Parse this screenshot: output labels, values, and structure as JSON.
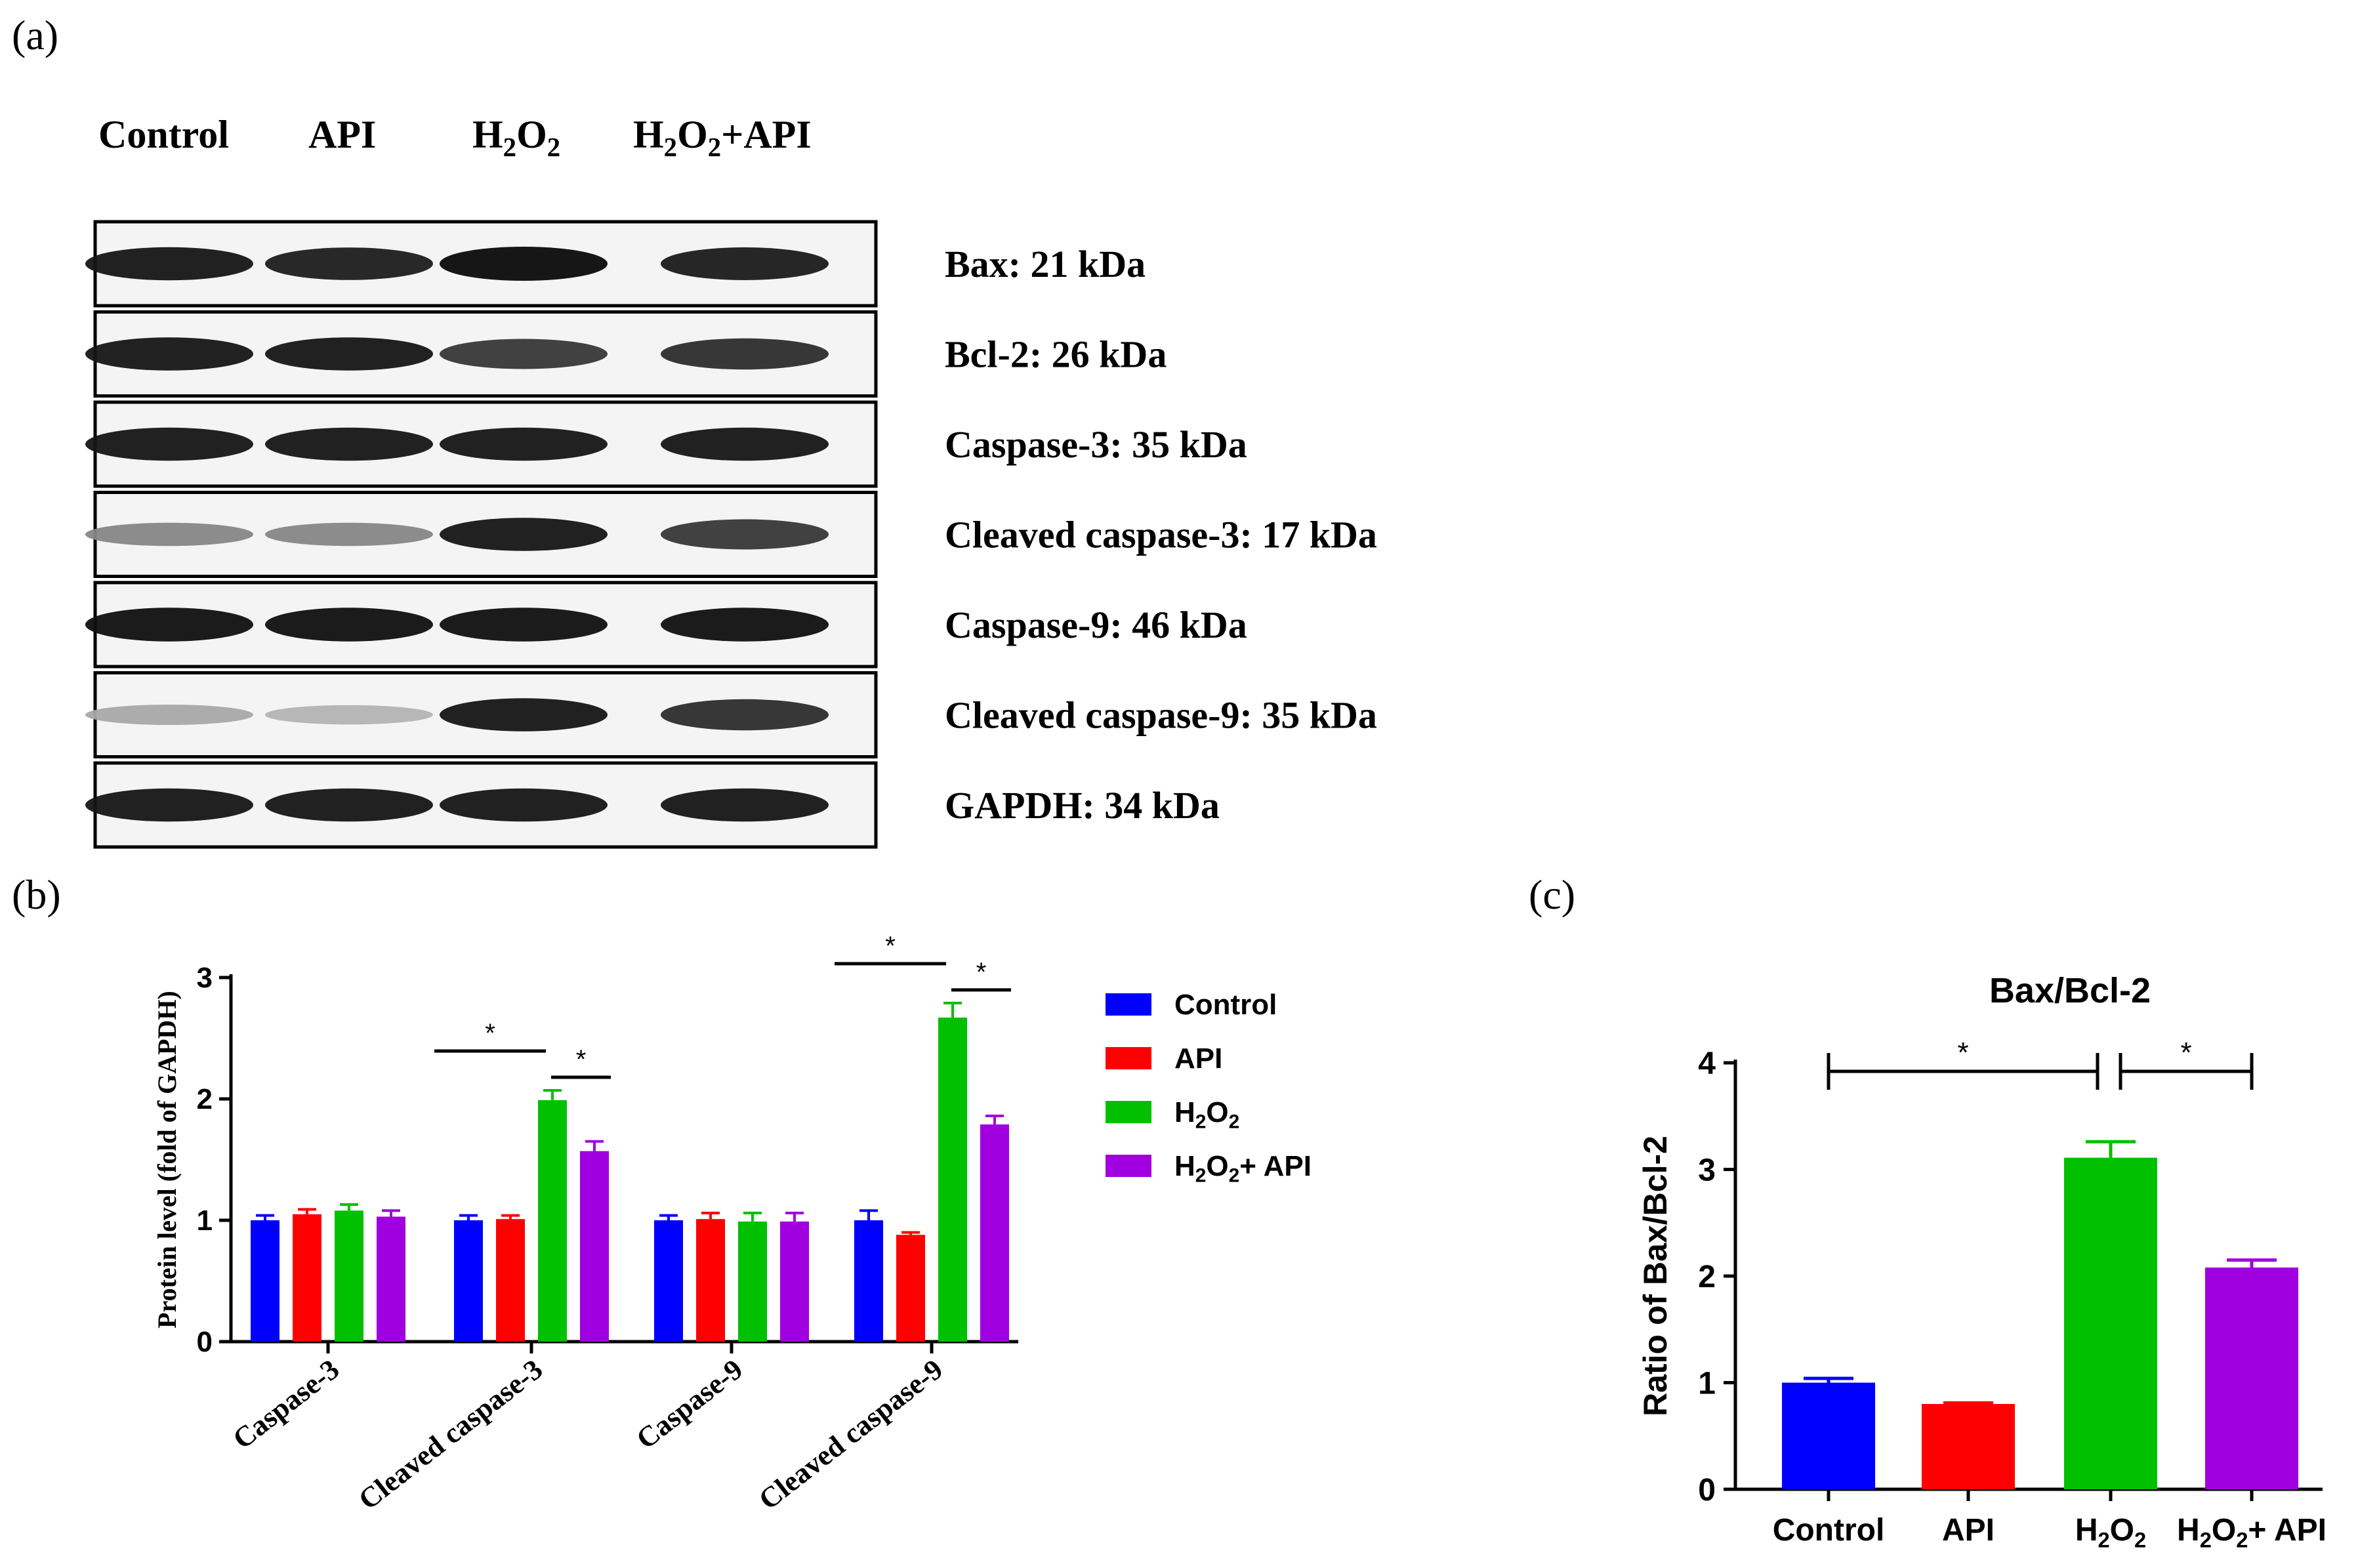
{
  "panel_labels": {
    "a": "(a)",
    "b": "(b)",
    "c": "(c)"
  },
  "western_blot": {
    "lanes": [
      "Control",
      "API",
      "H2O2",
      "H2O2+API"
    ],
    "lane_labels": [
      {
        "text": "Control"
      },
      {
        "text": "API"
      },
      {
        "main": "H",
        "sub1": "2",
        "mid": "O",
        "sub2": "2",
        "tail": ""
      },
      {
        "main": "H",
        "sub1": "2",
        "mid": "O",
        "sub2": "2",
        "tail": "+API"
      }
    ],
    "blots": [
      {
        "label": "Bax: 21 kDa",
        "intensity": [
          0.95,
          0.92,
          1.0,
          0.93
        ]
      },
      {
        "label": "Bcl-2: 26 kDa",
        "intensity": [
          0.95,
          0.95,
          0.8,
          0.85
        ]
      },
      {
        "label": "Caspase-3: 35 kDa",
        "intensity": [
          0.95,
          0.95,
          0.95,
          0.95
        ]
      },
      {
        "label": "Cleaved caspase-3: 17 kDa",
        "intensity": [
          0.45,
          0.45,
          0.95,
          0.8
        ]
      },
      {
        "label": "Caspase-9: 46 kDa",
        "intensity": [
          0.98,
          0.98,
          0.98,
          0.98
        ]
      },
      {
        "label": "Cleaved caspase-9: 35 kDa",
        "intensity": [
          0.3,
          0.25,
          0.95,
          0.85
        ]
      },
      {
        "label": "GAPDH: 34 kDa",
        "intensity": [
          0.95,
          0.95,
          0.95,
          0.95
        ]
      }
    ]
  },
  "chart_data": [
    {
      "type": "bar",
      "panel": "b",
      "ylabel": "Protein level (fold of GAPDH)",
      "ylim": [
        0,
        3
      ],
      "yticks": [
        0,
        1,
        2,
        3
      ],
      "categories": [
        "Caspase-3",
        "Cleaved caspase-3",
        "Caspase-9",
        "Cleaved caspase-9"
      ],
      "series": [
        {
          "name": "Control",
          "legend": {
            "main": "Control"
          },
          "color": "#0000ff",
          "values": [
            1.0,
            1.0,
            1.0,
            1.0
          ],
          "errors": [
            0.04,
            0.04,
            0.04,
            0.08
          ]
        },
        {
          "name": "API",
          "legend": {
            "main": "API"
          },
          "color": "#ff0000",
          "values": [
            1.05,
            1.01,
            1.01,
            0.88
          ],
          "errors": [
            0.04,
            0.03,
            0.05,
            0.02
          ]
        },
        {
          "name": "H2O2",
          "legend": {
            "main": "H",
            "sub1": "2",
            "mid": "O",
            "sub2": "2",
            "tail": ""
          },
          "color": "#00c000",
          "values": [
            1.08,
            1.99,
            0.99,
            2.67
          ],
          "errors": [
            0.05,
            0.08,
            0.07,
            0.12
          ]
        },
        {
          "name": "H2O2+ API",
          "legend": {
            "main": "H",
            "sub1": "2",
            "mid": "O",
            "sub2": "2",
            "tail": "+ API"
          },
          "color": "#a000e0",
          "values": [
            1.03,
            1.57,
            0.99,
            1.79
          ],
          "errors": [
            0.05,
            0.08,
            0.07,
            0.07
          ]
        }
      ],
      "significance": [
        {
          "category": 1,
          "from_series": 0,
          "to_series": 2,
          "label": "*"
        },
        {
          "category": 1,
          "from_series": 2,
          "to_series": 3,
          "label": "*"
        },
        {
          "category": 3,
          "from_series": 0,
          "to_series": 2,
          "label": "*"
        },
        {
          "category": 3,
          "from_series": 2,
          "to_series": 3,
          "label": "*"
        }
      ],
      "legend_position": "right"
    },
    {
      "type": "bar",
      "panel": "c",
      "title": "Bax/Bcl-2",
      "ylabel": "Ratio of Bax/Bcl-2",
      "ylim": [
        0,
        4
      ],
      "yticks": [
        0,
        1,
        2,
        3,
        4
      ],
      "categories": [
        "Control",
        "API",
        "H2O2",
        "H2O2+ API"
      ],
      "category_labels": [
        {
          "main": "Control"
        },
        {
          "main": "API"
        },
        {
          "main": "H",
          "sub1": "2",
          "mid": "O",
          "sub2": "2",
          "tail": ""
        },
        {
          "main": "H",
          "sub1": "2",
          "mid": "O",
          "sub2": "2",
          "tail": "+ API"
        }
      ],
      "values": [
        1.0,
        0.8,
        3.11,
        2.08
      ],
      "errors": [
        0.04,
        0.01,
        0.15,
        0.07
      ],
      "colors": [
        "#0000ff",
        "#ff0000",
        "#00c000",
        "#a000e0"
      ],
      "significance": [
        {
          "from": 0,
          "to": 2,
          "label": "*"
        },
        {
          "from": 2,
          "to": 3,
          "label": "*"
        }
      ]
    }
  ]
}
